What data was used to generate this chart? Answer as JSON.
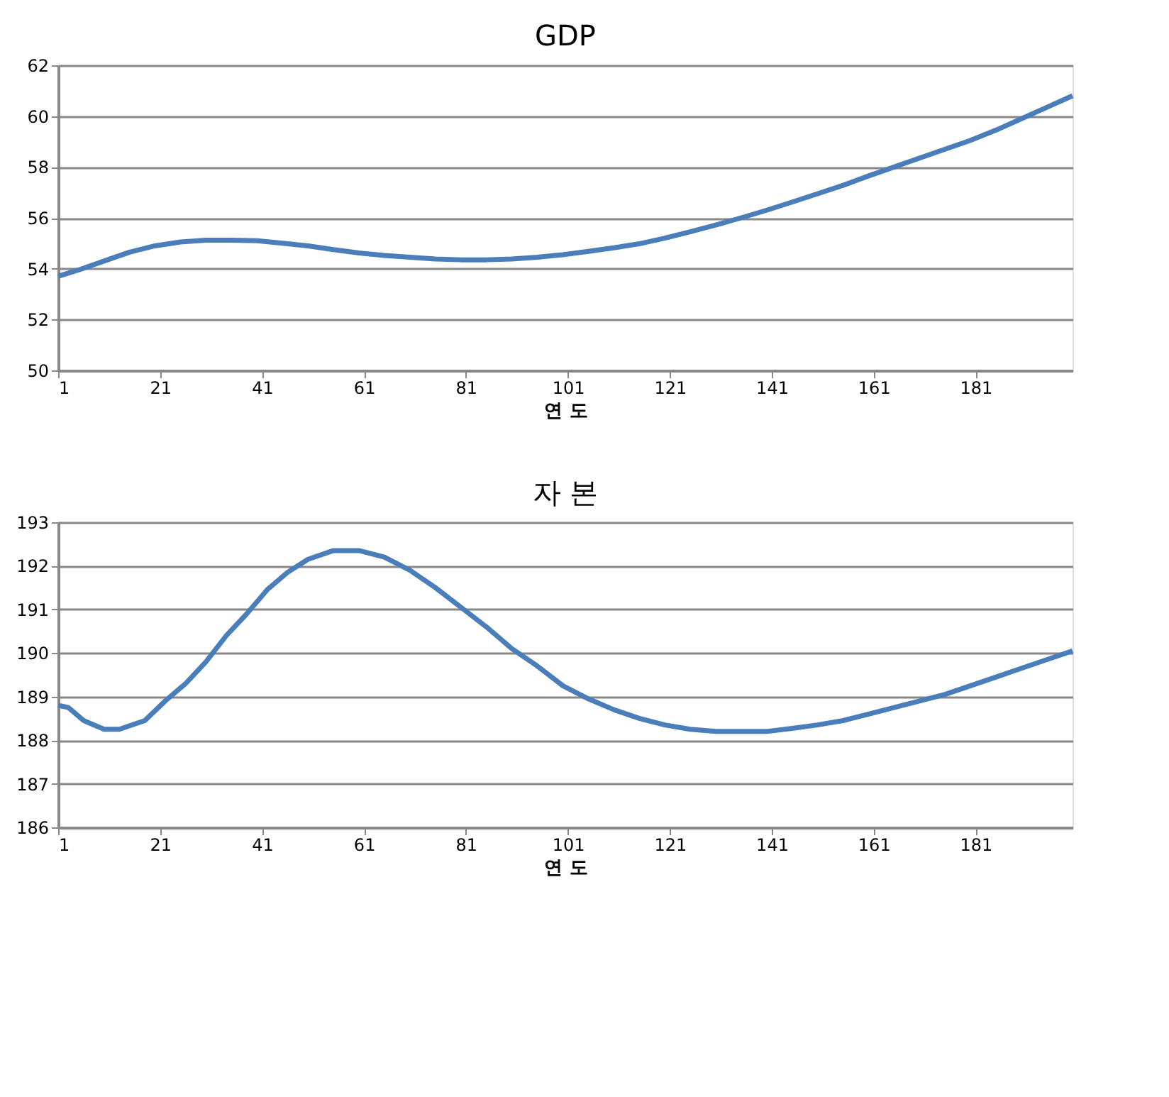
{
  "chart_data": [
    {
      "type": "line",
      "title": "GDP",
      "xlabel": "연 도",
      "x": [
        1,
        5,
        10,
        15,
        20,
        25,
        30,
        35,
        40,
        45,
        50,
        55,
        60,
        65,
        70,
        75,
        80,
        85,
        90,
        95,
        100,
        105,
        110,
        115,
        120,
        125,
        130,
        135,
        140,
        145,
        150,
        155,
        160,
        165,
        170,
        175,
        180,
        185,
        190,
        195,
        200
      ],
      "series": [
        {
          "color": "#4a7ebb",
          "values": [
            53.7,
            53.95,
            54.3,
            54.65,
            54.9,
            55.05,
            55.12,
            55.12,
            55.1,
            55.0,
            54.9,
            54.75,
            54.62,
            54.52,
            54.45,
            54.38,
            54.35,
            54.35,
            54.38,
            54.45,
            54.55,
            54.68,
            54.82,
            54.98,
            55.2,
            55.45,
            55.72,
            56.0,
            56.3,
            56.62,
            56.95,
            57.28,
            57.65,
            58.0,
            58.35,
            58.7,
            59.05,
            59.45,
            59.9,
            60.35,
            60.8
          ]
        }
      ],
      "xlim": [
        1,
        200
      ],
      "xticks": [
        1,
        21,
        41,
        61,
        81,
        101,
        121,
        141,
        161,
        181
      ],
      "ylim": [
        50,
        62
      ],
      "yticks": [
        50,
        52,
        54,
        56,
        58,
        60,
        62
      ],
      "grid": "y",
      "marker": "none",
      "line_style": "solid"
    },
    {
      "type": "line",
      "title": "자 본",
      "xlabel": "연 도",
      "x": [
        1,
        3,
        6,
        10,
        13,
        18,
        22,
        26,
        30,
        34,
        38,
        42,
        46,
        50,
        55,
        60,
        65,
        70,
        75,
        80,
        85,
        90,
        95,
        100,
        105,
        110,
        115,
        120,
        125,
        130,
        135,
        140,
        145,
        150,
        155,
        160,
        165,
        170,
        175,
        180,
        185,
        190,
        195,
        200
      ],
      "series": [
        {
          "color": "#4a7ebb",
          "values": [
            188.8,
            188.75,
            188.45,
            188.25,
            188.25,
            188.45,
            188.9,
            189.3,
            189.8,
            190.4,
            190.9,
            191.45,
            191.85,
            192.15,
            192.35,
            192.35,
            192.2,
            191.9,
            191.5,
            191.05,
            190.6,
            190.1,
            189.7,
            189.25,
            188.95,
            188.7,
            188.5,
            188.35,
            188.25,
            188.2,
            188.2,
            188.2,
            188.27,
            188.35,
            188.45,
            188.6,
            188.75,
            188.9,
            189.05,
            189.25,
            189.45,
            189.65,
            189.85,
            190.05
          ]
        }
      ],
      "xlim": [
        1,
        200
      ],
      "xticks": [
        1,
        21,
        41,
        61,
        81,
        101,
        121,
        141,
        161,
        181
      ],
      "ylim": [
        186,
        193
      ],
      "yticks": [
        186,
        187,
        188,
        189,
        190,
        191,
        192,
        193
      ],
      "grid": "y",
      "marker": "none",
      "line_style": "solid"
    }
  ]
}
